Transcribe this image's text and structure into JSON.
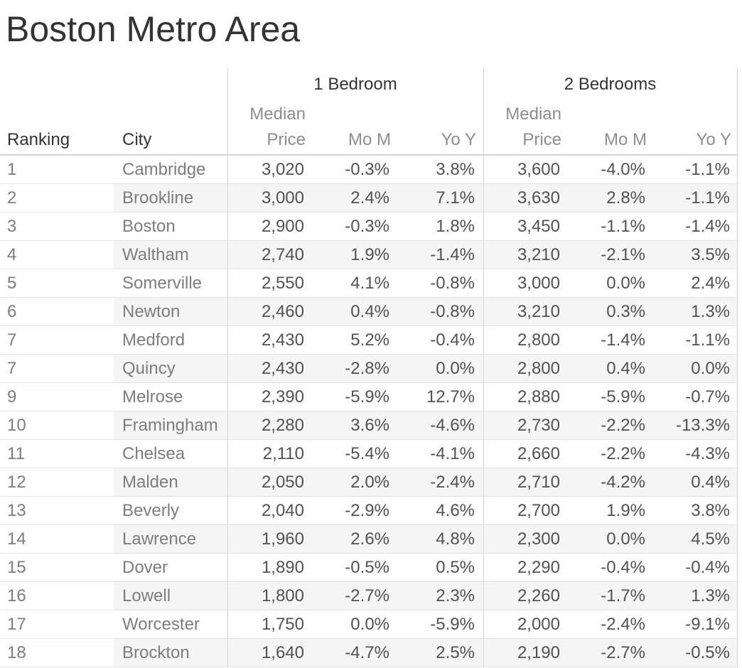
{
  "chart_data": {
    "type": "table",
    "title": "Boston Metro Area",
    "groups": [
      {
        "label": "1 Bedroom"
      },
      {
        "label": "2 Bedrooms"
      }
    ],
    "headers": {
      "ranking": "Ranking",
      "city": "City",
      "median_line1": "Median",
      "median_line2": "Price",
      "mom": "Mo M",
      "yoy": "Yo Y"
    },
    "rows": [
      {
        "ranking": "1",
        "city": "Cambridge",
        "br1_price": "3,020",
        "br1_mom": "-0.3%",
        "br1_yoy": "3.8%",
        "br2_price": "3,600",
        "br2_mom": "-4.0%",
        "br2_yoy": "-1.1%"
      },
      {
        "ranking": "2",
        "city": "Brookline",
        "br1_price": "3,000",
        "br1_mom": "2.4%",
        "br1_yoy": "7.1%",
        "br2_price": "3,630",
        "br2_mom": "2.8%",
        "br2_yoy": "-1.1%"
      },
      {
        "ranking": "3",
        "city": "Boston",
        "br1_price": "2,900",
        "br1_mom": "-0.3%",
        "br1_yoy": "1.8%",
        "br2_price": "3,450",
        "br2_mom": "-1.1%",
        "br2_yoy": "-1.4%"
      },
      {
        "ranking": "4",
        "city": "Waltham",
        "br1_price": "2,740",
        "br1_mom": "1.9%",
        "br1_yoy": "-1.4%",
        "br2_price": "3,210",
        "br2_mom": "-2.1%",
        "br2_yoy": "3.5%"
      },
      {
        "ranking": "5",
        "city": "Somerville",
        "br1_price": "2,550",
        "br1_mom": "4.1%",
        "br1_yoy": "-0.8%",
        "br2_price": "3,000",
        "br2_mom": "0.0%",
        "br2_yoy": "2.4%"
      },
      {
        "ranking": "6",
        "city": "Newton",
        "br1_price": "2,460",
        "br1_mom": "0.4%",
        "br1_yoy": "-0.8%",
        "br2_price": "3,210",
        "br2_mom": "0.3%",
        "br2_yoy": "1.3%"
      },
      {
        "ranking": "7",
        "city": "Medford",
        "br1_price": "2,430",
        "br1_mom": "5.2%",
        "br1_yoy": "-0.4%",
        "br2_price": "2,800",
        "br2_mom": "-1.4%",
        "br2_yoy": "-1.1%"
      },
      {
        "ranking": "7",
        "city": "Quincy",
        "br1_price": "2,430",
        "br1_mom": "-2.8%",
        "br1_yoy": "0.0%",
        "br2_price": "2,800",
        "br2_mom": "0.4%",
        "br2_yoy": "0.0%"
      },
      {
        "ranking": "9",
        "city": "Melrose",
        "br1_price": "2,390",
        "br1_mom": "-5.9%",
        "br1_yoy": "12.7%",
        "br2_price": "2,880",
        "br2_mom": "-5.9%",
        "br2_yoy": "-0.7%"
      },
      {
        "ranking": "10",
        "city": "Framingham",
        "br1_price": "2,280",
        "br1_mom": "3.6%",
        "br1_yoy": "-4.6%",
        "br2_price": "2,730",
        "br2_mom": "-2.2%",
        "br2_yoy": "-13.3%"
      },
      {
        "ranking": "11",
        "city": "Chelsea",
        "br1_price": "2,110",
        "br1_mom": "-5.4%",
        "br1_yoy": "-4.1%",
        "br2_price": "2,660",
        "br2_mom": "-2.2%",
        "br2_yoy": "-4.3%"
      },
      {
        "ranking": "12",
        "city": "Malden",
        "br1_price": "2,050",
        "br1_mom": "2.0%",
        "br1_yoy": "-2.4%",
        "br2_price": "2,710",
        "br2_mom": "-4.2%",
        "br2_yoy": "0.4%"
      },
      {
        "ranking": "13",
        "city": "Beverly",
        "br1_price": "2,040",
        "br1_mom": "-2.9%",
        "br1_yoy": "4.6%",
        "br2_price": "2,700",
        "br2_mom": "1.9%",
        "br2_yoy": "3.8%"
      },
      {
        "ranking": "14",
        "city": "Lawrence",
        "br1_price": "1,960",
        "br1_mom": "2.6%",
        "br1_yoy": "4.8%",
        "br2_price": "2,300",
        "br2_mom": "0.0%",
        "br2_yoy": "4.5%"
      },
      {
        "ranking": "15",
        "city": "Dover",
        "br1_price": "1,890",
        "br1_mom": "-0.5%",
        "br1_yoy": "0.5%",
        "br2_price": "2,290",
        "br2_mom": "-0.4%",
        "br2_yoy": "-0.4%"
      },
      {
        "ranking": "16",
        "city": "Lowell",
        "br1_price": "1,800",
        "br1_mom": "-2.7%",
        "br1_yoy": "2.3%",
        "br2_price": "2,260",
        "br2_mom": "-1.7%",
        "br2_yoy": "1.3%"
      },
      {
        "ranking": "17",
        "city": "Worcester",
        "br1_price": "1,750",
        "br1_mom": "0.0%",
        "br1_yoy": "-5.9%",
        "br2_price": "2,000",
        "br2_mom": "-2.4%",
        "br2_yoy": "-9.1%"
      },
      {
        "ranking": "18",
        "city": "Brockton",
        "br1_price": "1,640",
        "br1_mom": "-4.7%",
        "br1_yoy": "2.5%",
        "br2_price": "2,190",
        "br2_mom": "-2.7%",
        "br2_yoy": "-0.5%"
      }
    ]
  },
  "colors": {
    "title_text": "#333333",
    "group_header_text": "#333333",
    "sub_header_text": "#8d8d8d",
    "row_header_text": "#7d7d7d",
    "value_text": "#525252",
    "stripe": "#f5f5f5",
    "gridline": "#e2e2e2",
    "pane_divider": "#d6d6d6",
    "background": "#ffffff"
  }
}
